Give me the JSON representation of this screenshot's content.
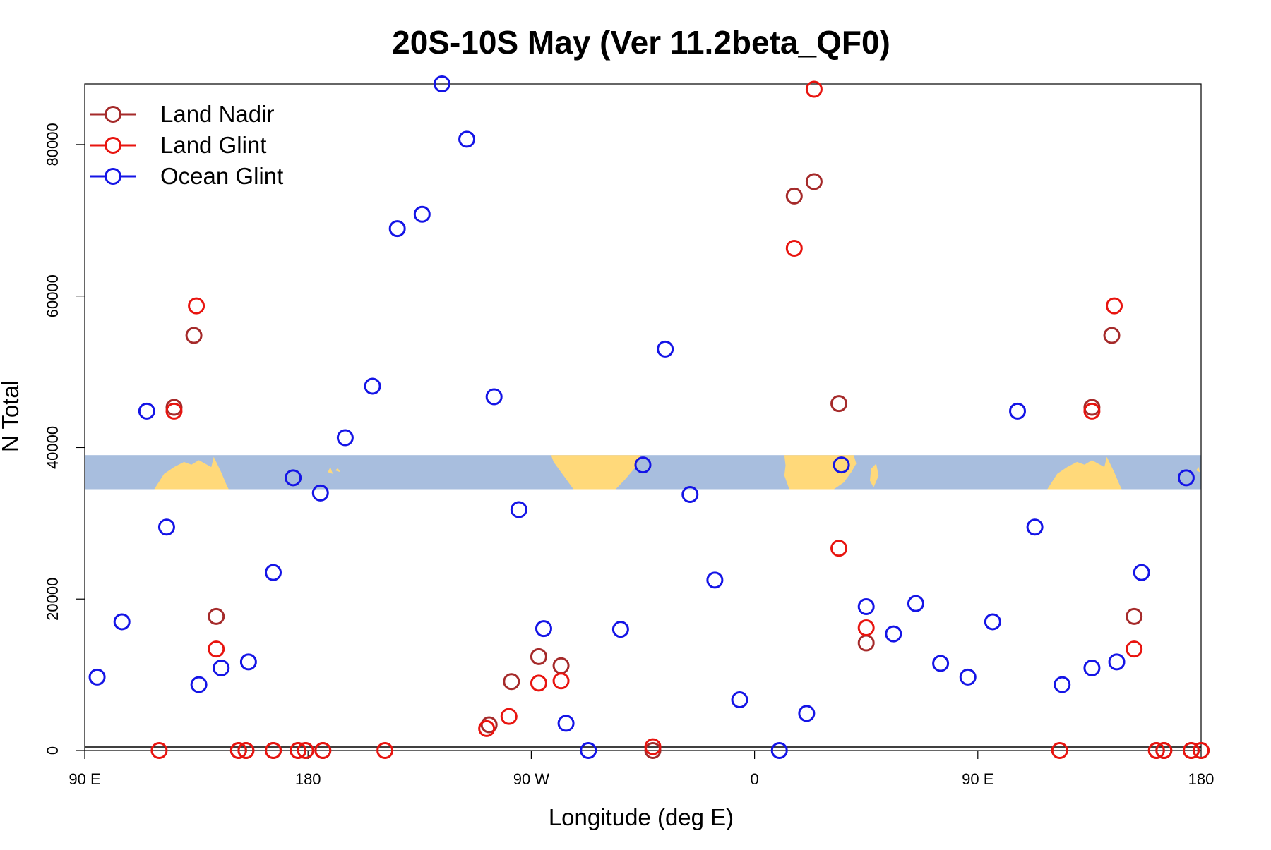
{
  "chart_data": {
    "type": "scatter",
    "title": "20S-10S May (Ver 11.2beta_QF0)",
    "xlabel": "Longitude (deg E)",
    "ylabel": "N Total",
    "xlim": [
      90,
      540
    ],
    "ylim": [
      0,
      88000
    ],
    "x_ticks": [
      {
        "value": 90,
        "label": "90 E"
      },
      {
        "value": 180,
        "label": "180"
      },
      {
        "value": 270,
        "label": "90 W"
      },
      {
        "value": 360,
        "label": "0"
      },
      {
        "value": 450,
        "label": "90 E"
      },
      {
        "value": 540,
        "label": "180"
      }
    ],
    "y_ticks": [
      {
        "value": 0,
        "label": "0"
      },
      {
        "value": 20000,
        "label": "20000"
      },
      {
        "value": 40000,
        "label": "40000"
      },
      {
        "value": 60000,
        "label": "60000"
      },
      {
        "value": 80000,
        "label": "80000"
      }
    ],
    "grid": false,
    "legend_position": "top-left",
    "map_band": {
      "y_range": [
        34500,
        39000
      ],
      "ocean_color": "#a8bede",
      "land_color": "#ffd97a"
    },
    "series": [
      {
        "name": "Land Nadir",
        "color": "#a52a2a",
        "points": [
          [
            126,
            45300
          ],
          [
            134,
            54800
          ],
          [
            143,
            17700
          ],
          [
            152,
            0
          ],
          [
            155,
            0
          ],
          [
            166,
            0
          ],
          [
            176,
            0
          ],
          [
            179,
            0
          ],
          [
            186,
            0
          ],
          [
            253,
            3400
          ],
          [
            262,
            9100
          ],
          [
            273,
            12400
          ],
          [
            282,
            11200
          ],
          [
            319,
            0
          ],
          [
            376,
            73200
          ],
          [
            384,
            75100
          ],
          [
            394,
            45800
          ],
          [
            405,
            14200
          ],
          [
            496,
            45300
          ],
          [
            504,
            54800
          ],
          [
            513,
            17700
          ],
          [
            522,
            0
          ],
          [
            525,
            0
          ],
          [
            536,
            0
          ],
          [
            540,
            0
          ]
        ]
      },
      {
        "name": "Land Glint",
        "color": "#e8140f",
        "points": [
          [
            120,
            0
          ],
          [
            126,
            44800
          ],
          [
            135,
            58700
          ],
          [
            143,
            13400
          ],
          [
            152,
            0
          ],
          [
            155,
            0
          ],
          [
            166,
            0
          ],
          [
            176,
            0
          ],
          [
            179,
            0
          ],
          [
            186,
            0
          ],
          [
            211,
            0
          ],
          [
            252,
            2900
          ],
          [
            261,
            4500
          ],
          [
            273,
            8900
          ],
          [
            282,
            9200
          ],
          [
            319,
            500
          ],
          [
            376,
            66300
          ],
          [
            384,
            87300
          ],
          [
            394,
            26700
          ],
          [
            405,
            16200
          ],
          [
            496,
            44800
          ],
          [
            505,
            58700
          ],
          [
            513,
            13400
          ],
          [
            522,
            0
          ],
          [
            525,
            0
          ],
          [
            536,
            0
          ],
          [
            540,
            0
          ],
          [
            483,
            0
          ]
        ]
      },
      {
        "name": "Ocean Glint",
        "color": "#1414e6",
        "points": [
          [
            95,
            9700
          ],
          [
            105,
            17000
          ],
          [
            115,
            44800
          ],
          [
            123,
            29500
          ],
          [
            136,
            8700
          ],
          [
            145,
            10900
          ],
          [
            156,
            11700
          ],
          [
            166,
            23500
          ],
          [
            174,
            36000
          ],
          [
            185,
            34000
          ],
          [
            195,
            41300
          ],
          [
            206,
            48100
          ],
          [
            216,
            68900
          ],
          [
            226,
            70800
          ],
          [
            234,
            88000
          ],
          [
            244,
            80700
          ],
          [
            255,
            46700
          ],
          [
            265,
            31800
          ],
          [
            275,
            16100
          ],
          [
            284,
            3600
          ],
          [
            293,
            0
          ],
          [
            306,
            16000
          ],
          [
            315,
            37700
          ],
          [
            324,
            53000
          ],
          [
            334,
            33800
          ],
          [
            344,
            22500
          ],
          [
            354,
            6700
          ],
          [
            370,
            0
          ],
          [
            381,
            4900
          ],
          [
            395,
            37700
          ],
          [
            405,
            19000
          ],
          [
            416,
            15400
          ],
          [
            425,
            19400
          ],
          [
            435,
            11500
          ],
          [
            446,
            9700
          ],
          [
            456,
            17000
          ],
          [
            466,
            44800
          ],
          [
            473,
            29500
          ],
          [
            484,
            8700
          ],
          [
            496,
            10900
          ],
          [
            506,
            11700
          ],
          [
            516,
            23500
          ],
          [
            534,
            36000
          ]
        ]
      }
    ]
  }
}
